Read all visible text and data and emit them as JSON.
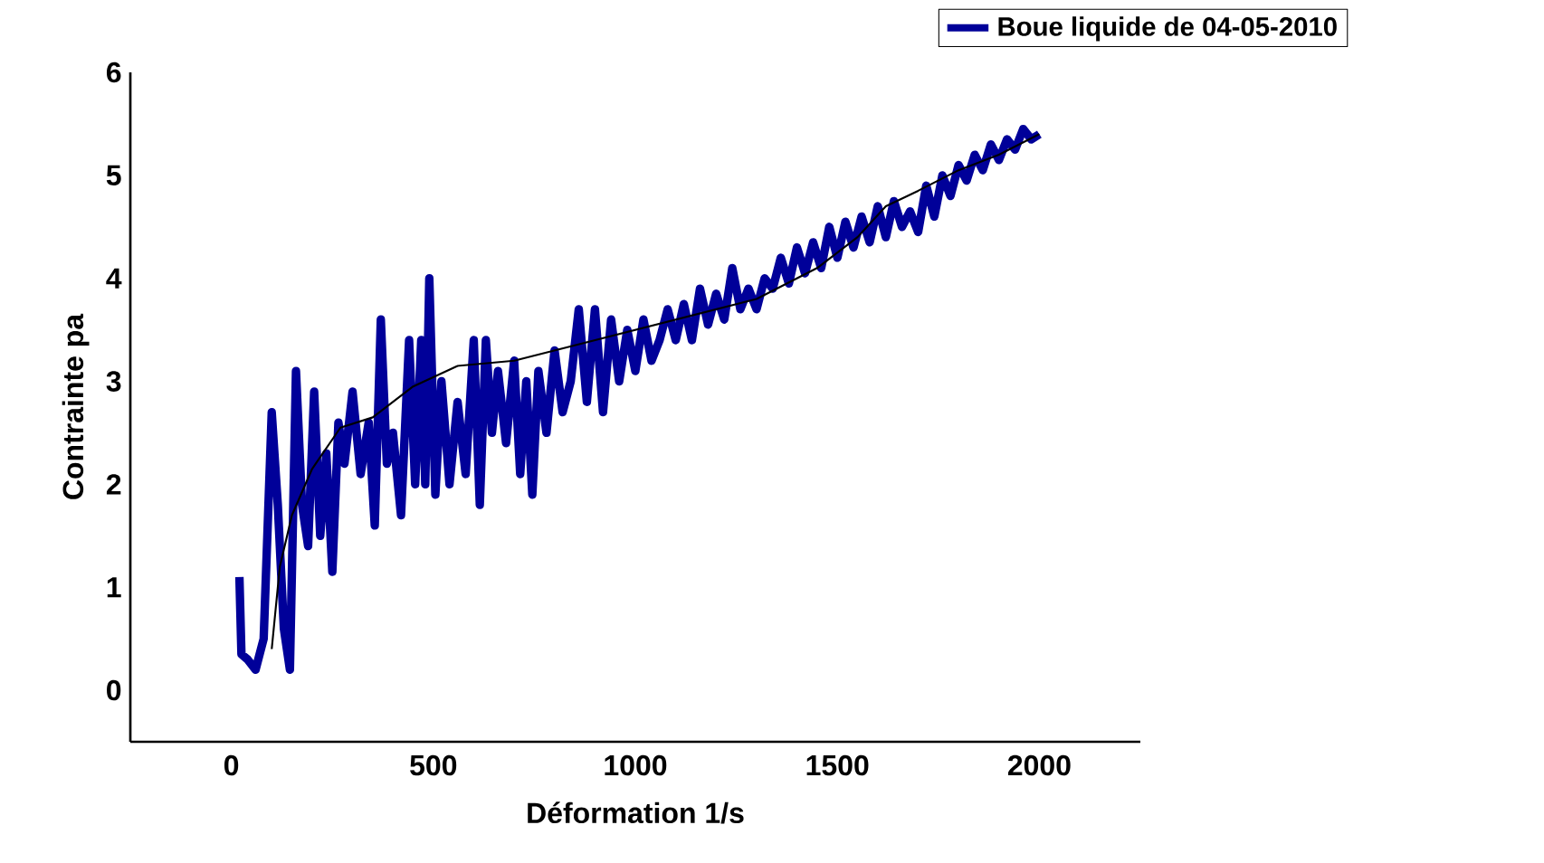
{
  "chart_data": {
    "type": "line",
    "xlabel": "Déformation  1/s",
    "ylabel": "Contrainte pa",
    "xlim": [
      -250,
      2250
    ],
    "ylim": [
      -0.5,
      6
    ],
    "xticks": [
      0,
      500,
      1000,
      1500,
      2000
    ],
    "yticks": [
      0,
      1,
      2,
      3,
      4,
      5,
      6
    ],
    "legend": "top right",
    "marker": "none",
    "line_style": "solid",
    "series": [
      {
        "name": "Boue liquide de 04-05-2010",
        "color": "#000099",
        "x": [
          20,
          25,
          40,
          60,
          80,
          100,
          115,
          130,
          145,
          160,
          175,
          190,
          205,
          220,
          235,
          250,
          265,
          280,
          300,
          320,
          340,
          355,
          370,
          385,
          400,
          420,
          440,
          455,
          470,
          480,
          490,
          505,
          520,
          540,
          560,
          580,
          600,
          615,
          630,
          645,
          660,
          680,
          700,
          715,
          730,
          745,
          760,
          780,
          800,
          820,
          840,
          860,
          880,
          900,
          920,
          940,
          960,
          980,
          1000,
          1020,
          1040,
          1060,
          1080,
          1100,
          1120,
          1140,
          1160,
          1180,
          1200,
          1220,
          1240,
          1260,
          1280,
          1300,
          1320,
          1340,
          1360,
          1380,
          1400,
          1420,
          1440,
          1460,
          1480,
          1500,
          1520,
          1540,
          1560,
          1580,
          1600,
          1620,
          1640,
          1660,
          1680,
          1700,
          1720,
          1740,
          1760,
          1780,
          1800,
          1820,
          1840,
          1860,
          1880,
          1900,
          1920,
          1940,
          1960,
          1980,
          2000
        ],
        "values": [
          1.1,
          0.35,
          0.3,
          0.2,
          0.5,
          2.7,
          1.8,
          0.6,
          0.2,
          3.1,
          1.8,
          1.4,
          2.9,
          1.5,
          2.3,
          1.15,
          2.6,
          2.2,
          2.9,
          2.1,
          2.6,
          1.6,
          3.6,
          2.2,
          2.5,
          1.7,
          3.4,
          2.0,
          3.4,
          2.0,
          4.0,
          1.9,
          3.0,
          2.0,
          2.8,
          2.1,
          3.4,
          1.8,
          3.4,
          2.5,
          3.1,
          2.4,
          3.2,
          2.1,
          3.0,
          1.9,
          3.1,
          2.5,
          3.3,
          2.7,
          3.0,
          3.7,
          2.8,
          3.7,
          2.7,
          3.6,
          3.0,
          3.5,
          3.1,
          3.6,
          3.2,
          3.4,
          3.7,
          3.4,
          3.75,
          3.4,
          3.9,
          3.55,
          3.85,
          3.6,
          4.1,
          3.7,
          3.9,
          3.7,
          4.0,
          3.9,
          4.2,
          3.95,
          4.3,
          4.05,
          4.35,
          4.1,
          4.5,
          4.2,
          4.55,
          4.3,
          4.6,
          4.35,
          4.7,
          4.4,
          4.75,
          4.5,
          4.65,
          4.45,
          4.9,
          4.6,
          5.0,
          4.8,
          5.1,
          4.95,
          5.2,
          5.05,
          5.3,
          5.15,
          5.35,
          5.25,
          5.45,
          5.35,
          5.4
        ]
      },
      {
        "type": "line",
        "color": "#000000",
        "x": [
          100,
          120,
          150,
          200,
          270,
          350,
          450,
          560,
          700,
          850,
          1000,
          1150,
          1300,
          1450,
          1550,
          1620,
          1700,
          1800,
          1900,
          2000
        ],
        "values": [
          0.4,
          1.2,
          1.7,
          2.15,
          2.55,
          2.65,
          2.95,
          3.15,
          3.2,
          3.35,
          3.5,
          3.65,
          3.8,
          4.1,
          4.4,
          4.7,
          4.85,
          5.05,
          5.2,
          5.4
        ]
      }
    ]
  }
}
